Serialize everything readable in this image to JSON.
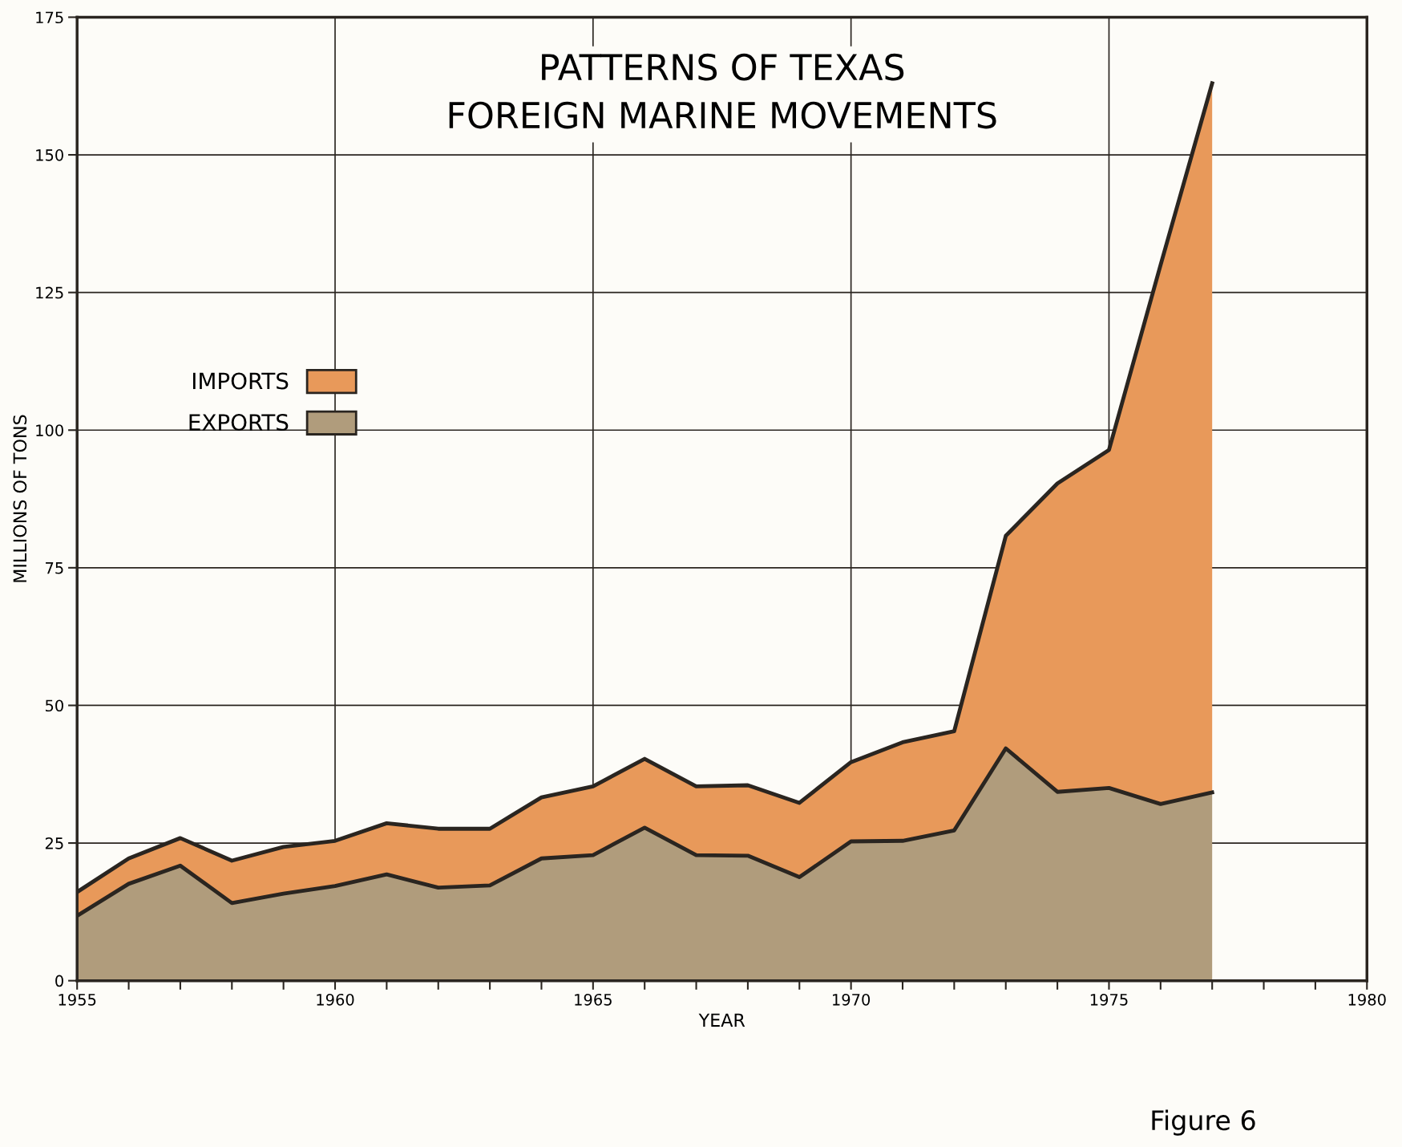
{
  "chart_data": {
    "type": "area",
    "title": "PATTERNS OF TEXAS\nFOREIGN MARINE MOVEMENTS",
    "xlabel": "YEAR",
    "ylabel": "MILLIONS OF TONS",
    "x": [
      1955,
      1956,
      1957,
      1958,
      1959,
      1960,
      1961,
      1962,
      1963,
      1964,
      1965,
      1966,
      1967,
      1968,
      1969,
      1970,
      1971,
      1972,
      1973,
      1974,
      1975,
      1976,
      1977
    ],
    "stacked": true,
    "series": [
      {
        "name": "EXPORTS",
        "color": "#b09c7c",
        "values": [
          11.8,
          17.6,
          20.9,
          14.1,
          15.8,
          17.2,
          19.3,
          16.9,
          17.3,
          22.2,
          22.8,
          27.8,
          22.8,
          22.7,
          18.8,
          25.3,
          25.4,
          27.3,
          42.2,
          34.3,
          35.0,
          32.1,
          34.2
        ]
      },
      {
        "name": "IMPORTS",
        "color": "#e8995a",
        "values": [
          4.3,
          4.6,
          5.0,
          7.7,
          8.5,
          8.2,
          9.3,
          10.7,
          10.3,
          11.1,
          12.5,
          12.5,
          12.5,
          12.8,
          13.5,
          14.4,
          17.9,
          18.0,
          38.6,
          56.0,
          61.4,
          97.9,
          128.8
        ]
      }
    ],
    "xlim": [
      1955,
      1980
    ],
    "ylim": [
      0,
      175
    ],
    "xticks": [
      1955,
      {
        "value": 1956,
        "label": null
      },
      {
        "value": 1957,
        "label": null
      },
      {
        "value": 1958,
        "label": null
      },
      {
        "value": 1959,
        "label": null
      },
      1960,
      {
        "value": 1961,
        "label": null
      },
      {
        "value": 1962,
        "label": null
      },
      {
        "value": 1963,
        "label": null
      },
      {
        "value": 1964,
        "label": null
      },
      1965,
      {
        "value": 1966,
        "label": null
      },
      {
        "value": 1967,
        "label": null
      },
      {
        "value": 1968,
        "label": null
      },
      {
        "value": 1969,
        "label": null
      },
      1970,
      {
        "value": 1971,
        "label": null
      },
      {
        "value": 1972,
        "label": null
      },
      {
        "value": 1973,
        "label": null
      },
      {
        "value": 1974,
        "label": null
      },
      1975,
      {
        "value": 1976,
        "label": null
      },
      {
        "value": 1977,
        "label": null
      },
      {
        "value": 1978,
        "label": null
      },
      {
        "value": 1979,
        "label": null
      },
      1980
    ],
    "yticks": [
      0,
      25,
      50,
      75,
      100,
      125,
      150,
      175
    ],
    "grid": true,
    "legend": "left",
    "annotations": [
      "Figure 6"
    ]
  }
}
